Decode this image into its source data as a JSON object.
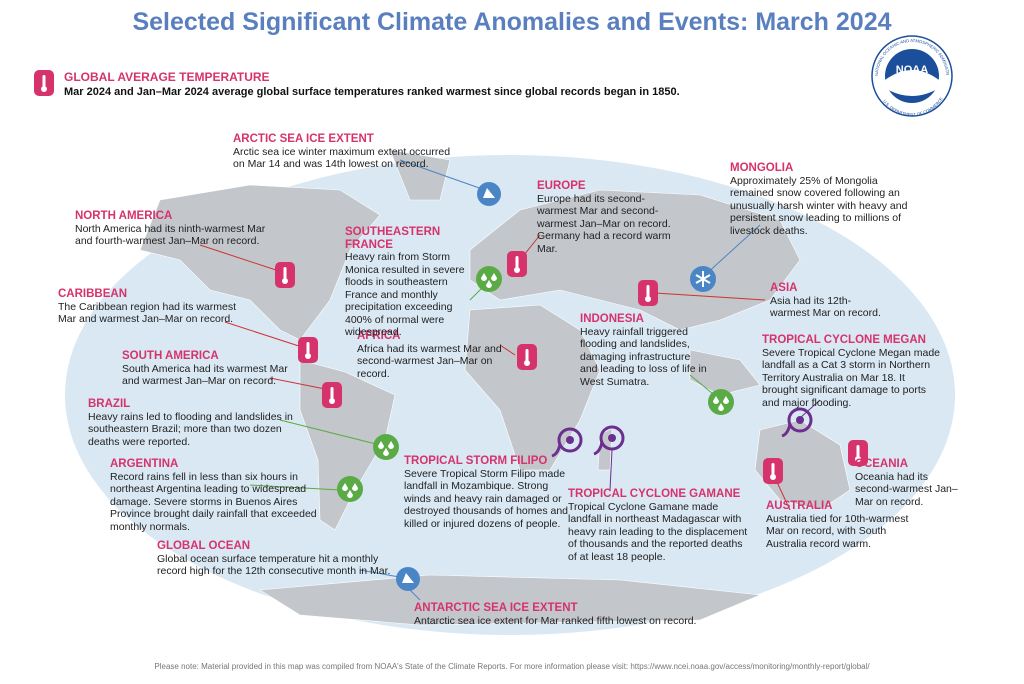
{
  "header": {
    "title": "Selected Significant Climate Anomalies and Events: March 2024"
  },
  "logo": {
    "name": "NOAA",
    "ring_top": "NATIONAL OCEANIC AND ATMOSPHERIC ADMINISTRATION",
    "ring_bottom": "U.S. DEPARTMENT OF COMMERCE"
  },
  "global": {
    "heading": "GLOBAL AVERAGE TEMPERATURE",
    "text": "Mar 2024 and Jan–Mar 2024 average global surface temperatures ranked warmest since global records began in 1850."
  },
  "notes": [
    {
      "heading": "ARCTIC SEA ICE EXTENT",
      "text": "Arctic sea ice winter maximum extent occurred on Mar 14 and was 14th lowest on record."
    },
    {
      "heading": "NORTH AMERICA",
      "text": "North America had its ninth-warmest Mar and fourth-warmest Jan–Mar on record."
    },
    {
      "heading": "CARIBBEAN",
      "text": "The Caribbean region had its warmest Mar and warmest Jan–Mar on record."
    },
    {
      "heading": "SOUTH AMERICA",
      "text": "South America had its warmest Mar and warmest Jan–Mar on record."
    },
    {
      "heading": "BRAZIL",
      "text": "Heavy rains led to flooding and landslides in southeastern Brazil; more than two dozen deaths were reported."
    },
    {
      "heading": "ARGENTINA",
      "text": "Record rains fell in less than six hours in northeast Argentina leading to widespread damage. Severe storms in Buenos Aires Province brought daily rainfall that exceeded monthly normals."
    },
    {
      "heading": "GLOBAL OCEAN",
      "text": "Global ocean surface temperature hit a monthly record high for the 12th consecutive month in Mar."
    },
    {
      "heading": "ANTARCTIC SEA ICE EXTENT",
      "text": "Antarctic sea ice extent for Mar ranked fifth lowest on record."
    },
    {
      "heading": "TROPICAL STORM FILIPO",
      "text": "Severe Tropical Storm Filipo made landfall in Mozambique. Strong winds and heavy rain damaged or destroyed thousands of homes and killed or injured dozens of people."
    },
    {
      "heading": "TROPICAL CYCLONE GAMANE",
      "text": "Tropical Cyclone Gamane made landfall in northeast Madagascar with heavy rain leading to the displacement of thousands and the reported deaths of at least 18 people."
    },
    {
      "heading": "AFRICA",
      "text": "Africa had its warmest Mar and second-warmest Jan–Mar on record."
    },
    {
      "heading": "SOUTHEASTERN FRANCE",
      "text": "Heavy rain from Storm Monica resulted in severe floods in southeastern France and monthly precipitation exceeding 400% of normal were widespread."
    },
    {
      "heading": "EUROPE",
      "text": "Europe had its second-warmest Mar and second-warmest Jan–Mar on record. Germany had a record warm Mar."
    },
    {
      "heading": "INDONESIA",
      "text": "Heavy rainfall triggered flooding and landslides, damaging infrastructure and leading to loss of life in West Sumatra."
    },
    {
      "heading": "MONGOLIA",
      "text": "Approximately 25% of Mongolia remained snow covered following an unusually harsh winter with heavy and persistent snow leading to millions of livestock deaths."
    },
    {
      "heading": "ASIA",
      "text": "Asia had its 12th-warmest Mar on record."
    },
    {
      "heading": "TROPICAL CYCLONE MEGAN",
      "text": "Severe Tropical Cyclone Megan made landfall as a Cat 3 storm in Northern Territory Australia on Mar 18. It brought significant damage to ports and major flooding."
    },
    {
      "heading": "OCEANIA",
      "text": "Oceania had its second-warmest Jan–Mar on record."
    },
    {
      "heading": "AUSTRALIA",
      "text": "Australia tied for 10th-warmest Mar on record, with South Australia record warm."
    }
  ],
  "footer": {
    "note": "Please note: Material provided in this map was compiled from NOAA's State of the Climate Reports. For more information please visit: https://www.ncei.noaa.gov/access/monitoring/monthly-report/global/"
  }
}
